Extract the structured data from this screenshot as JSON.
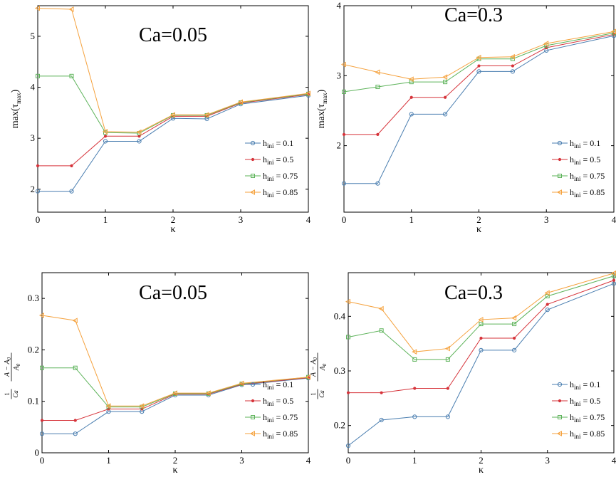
{
  "chart_data": [
    {
      "type": "line",
      "title": "Ca=0.05",
      "xlabel": "κ",
      "ylabel": "max(τmax)",
      "ylabel_parts": [
        "max(τ",
        "max",
        ")"
      ],
      "xlim": [
        0,
        4
      ],
      "ylim": [
        1.55,
        5.6
      ],
      "xticks": [
        0,
        1,
        2,
        3,
        4
      ],
      "yticks": [
        2,
        3,
        4,
        5
      ],
      "x": [
        0,
        0.5,
        1,
        1.5,
        2,
        2.5,
        3,
        4
      ],
      "series": [
        {
          "name": "h_ini = 0.1",
          "values": [
            1.96,
            1.96,
            2.94,
            2.94,
            3.39,
            3.38,
            3.67,
            3.84
          ]
        },
        {
          "name": "h_ini = 0.5",
          "values": [
            2.46,
            2.46,
            3.04,
            3.04,
            3.43,
            3.43,
            3.69,
            3.86
          ]
        },
        {
          "name": "h_ini = 0.75",
          "values": [
            4.22,
            4.22,
            3.11,
            3.1,
            3.45,
            3.45,
            3.7,
            3.87
          ]
        },
        {
          "name": "h_ini = 0.85",
          "values": [
            5.55,
            5.53,
            3.13,
            3.12,
            3.46,
            3.46,
            3.71,
            3.88
          ]
        }
      ],
      "legend": "bottom-right"
    },
    {
      "type": "line",
      "title": "Ca=0.3",
      "xlabel": "κ",
      "ylabel": "max(τmax)",
      "ylabel_parts": [
        "max(τ",
        "max",
        ")"
      ],
      "xlim": [
        0,
        4
      ],
      "ylim": [
        1.05,
        4.0
      ],
      "xticks": [
        0,
        1,
        2,
        3,
        4
      ],
      "yticks": [
        2,
        3,
        4
      ],
      "x": [
        0,
        0.5,
        1,
        1.5,
        2,
        2.5,
        3,
        4
      ],
      "series": [
        {
          "name": "h_ini = 0.1",
          "values": [
            1.46,
            1.46,
            2.45,
            2.45,
            3.06,
            3.06,
            3.36,
            3.57
          ]
        },
        {
          "name": "h_ini = 0.5",
          "values": [
            2.16,
            2.16,
            2.69,
            2.69,
            3.14,
            3.14,
            3.4,
            3.59
          ]
        },
        {
          "name": "h_ini = 0.75",
          "values": [
            2.77,
            2.84,
            2.91,
            2.91,
            3.24,
            3.24,
            3.43,
            3.61
          ]
        },
        {
          "name": "h_ini = 0.85",
          "values": [
            3.16,
            3.05,
            2.95,
            2.98,
            3.26,
            3.27,
            3.46,
            3.63
          ]
        }
      ],
      "legend": "bottom-right"
    },
    {
      "type": "line",
      "title": "Ca=0.05",
      "xlabel": "κ",
      "ylabel": "(1/Ca)(A−A0)/A0",
      "ylabel_parts": [
        "1",
        "Ca",
        "A − A",
        "0",
        "A",
        "0"
      ],
      "xlim": [
        0,
        4
      ],
      "ylim": [
        0,
        0.35
      ],
      "xticks": [
        0,
        1,
        2,
        3,
        4
      ],
      "yticks": [
        0,
        0.1,
        0.2,
        0.3
      ],
      "x": [
        0,
        0.5,
        1,
        1.5,
        2,
        2.5,
        3,
        4
      ],
      "series": [
        {
          "name": "h_ini = 0.1",
          "values": [
            0.037,
            0.037,
            0.08,
            0.08,
            0.112,
            0.112,
            0.132,
            0.145
          ]
        },
        {
          "name": "h_ini = 0.5",
          "values": [
            0.063,
            0.063,
            0.085,
            0.085,
            0.114,
            0.114,
            0.133,
            0.146
          ]
        },
        {
          "name": "h_ini = 0.75",
          "values": [
            0.165,
            0.165,
            0.089,
            0.089,
            0.115,
            0.115,
            0.134,
            0.147
          ]
        },
        {
          "name": "h_ini = 0.85",
          "values": [
            0.267,
            0.257,
            0.091,
            0.091,
            0.116,
            0.116,
            0.135,
            0.147
          ]
        }
      ],
      "legend": "bottom-right"
    },
    {
      "type": "line",
      "title": "Ca=0.3",
      "xlabel": "κ",
      "ylabel": "(1/Ca)(A−A0)/A0",
      "ylabel_parts": [
        "1",
        "Ca",
        "A − A",
        "0",
        "A",
        "0"
      ],
      "xlim": [
        0,
        4
      ],
      "ylim": [
        0.15,
        0.48
      ],
      "xticks": [
        0,
        1,
        2,
        3,
        4
      ],
      "yticks": [
        0.2,
        0.3,
        0.4
      ],
      "x": [
        0,
        0.5,
        1,
        1.5,
        2,
        2.5,
        3,
        4
      ],
      "series": [
        {
          "name": "h_ini = 0.1",
          "values": [
            0.163,
            0.21,
            0.216,
            0.216,
            0.338,
            0.338,
            0.412,
            0.46
          ]
        },
        {
          "name": "h_ini = 0.5",
          "values": [
            0.26,
            0.26,
            0.268,
            0.268,
            0.36,
            0.36,
            0.422,
            0.466
          ]
        },
        {
          "name": "h_ini = 0.75",
          "values": [
            0.362,
            0.374,
            0.321,
            0.321,
            0.386,
            0.386,
            0.437,
            0.474
          ]
        },
        {
          "name": "h_ini = 0.85",
          "values": [
            0.427,
            0.414,
            0.335,
            0.341,
            0.394,
            0.397,
            0.443,
            0.479
          ]
        }
      ],
      "legend": "bottom-right"
    }
  ],
  "legend_entries": [
    {
      "base": "h",
      "sub": "ini",
      "value": " = 0.1"
    },
    {
      "base": "h",
      "sub": "ini",
      "value": " = 0.5"
    },
    {
      "base": "h",
      "sub": "ini",
      "value": " = 0.75"
    },
    {
      "base": "h",
      "sub": "ini",
      "value": " = 0.85"
    }
  ],
  "colors": [
    "#4a7eb0",
    "#d6333a",
    "#5db35a",
    "#f5a23e"
  ],
  "markers": [
    "circle-icon",
    "dot-icon",
    "square-icon",
    "triangle-left-icon"
  ]
}
